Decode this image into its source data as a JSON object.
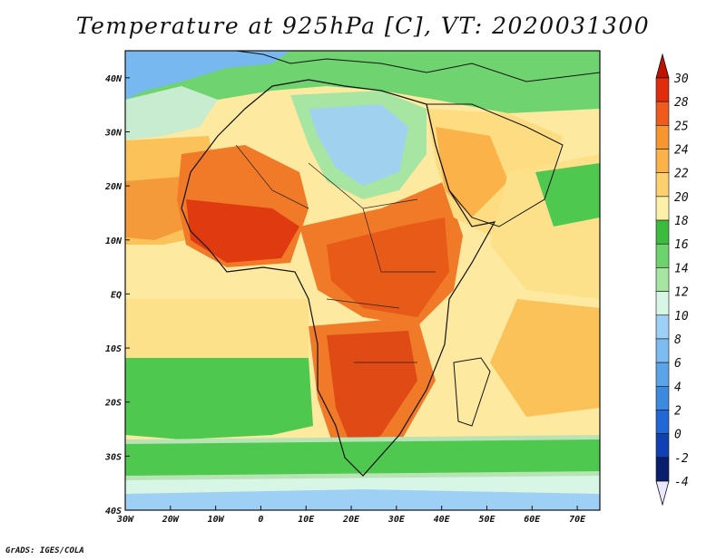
{
  "title": "Temperature at 925hPa [C], VT: 2020031300",
  "credit": "GrADS: IGES/COLA",
  "map": {
    "lon_range": [
      -30,
      75
    ],
    "lat_range": [
      -40,
      45
    ],
    "lon_ticks": [
      "30W",
      "20W",
      "10W",
      "0",
      "10E",
      "20E",
      "30E",
      "40E",
      "50E",
      "60E",
      "70E"
    ],
    "lat_ticks": [
      "40N",
      "30N",
      "20N",
      "10N",
      "EQ",
      "10S",
      "20S",
      "30S",
      "40S"
    ],
    "regions": [
      {
        "name": "sahara-cool-core",
        "color": "#a0d2f0"
      },
      {
        "name": "west-africa-hot",
        "color": "#e03a10"
      },
      {
        "name": "central-africa-hot",
        "color": "#e85a18"
      },
      {
        "name": "southern-africa-hot",
        "color": "#e04a14"
      },
      {
        "name": "arabia",
        "color": "#fddc82"
      },
      {
        "name": "mediterranean",
        "color": "#5fce5f"
      },
      {
        "name": "south-atlantic-cool",
        "color": "#4fc84f"
      },
      {
        "name": "southern-ocean",
        "color": "#b8e3b5"
      }
    ]
  },
  "colorbar": {
    "levels": [
      "30",
      "28",
      "25",
      "24",
      "22",
      "20",
      "18",
      "16",
      "14",
      "12",
      "10",
      "8",
      "6",
      "4",
      "2",
      "0",
      "-2",
      "-4"
    ],
    "colors": [
      "#a00000",
      "#e02c0c",
      "#f05a1c",
      "#f7962f",
      "#fbb248",
      "#fdd06e",
      "#fdf0a8",
      "#3cbc3c",
      "#6dd46d",
      "#a7e5a2",
      "#d8f6e6",
      "#9ed0f5",
      "#7dbcf0",
      "#5aa4ea",
      "#3c8ae0",
      "#2068d8",
      "#1040b4",
      "#0a1e6e"
    ],
    "top_color": "#c01000",
    "bottom_color": "#ece6ff"
  }
}
